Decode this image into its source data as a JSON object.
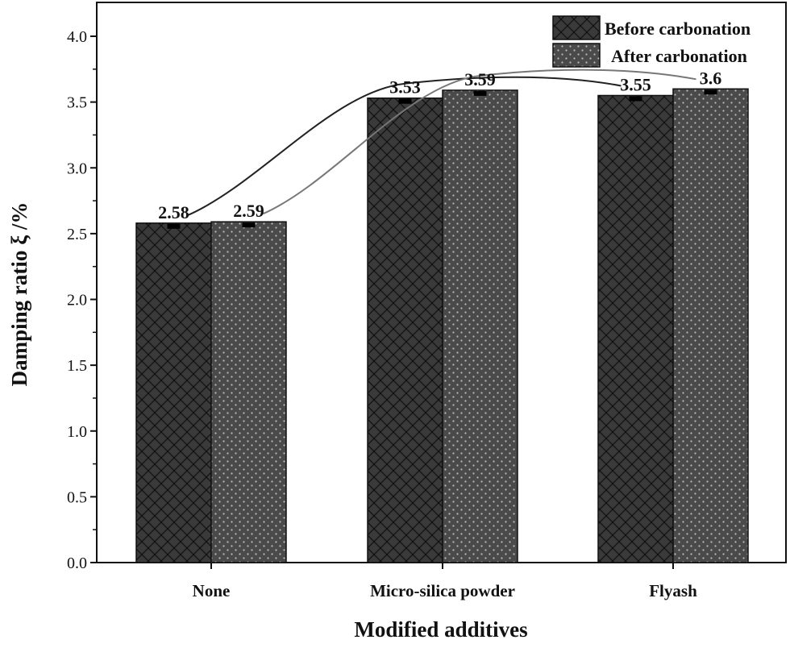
{
  "chart_data": {
    "type": "bar",
    "title": "",
    "xlabel": "Modified additives",
    "ylabel": "Damping ratio ξ /%",
    "ylim": [
      0,
      4.27
    ],
    "yticks": [
      "0.0",
      "0.5",
      "1.0",
      "1.5",
      "2.0",
      "2.5",
      "3.0",
      "3.5",
      "4.0"
    ],
    "categories": [
      "None",
      "Micro-silica powder",
      "Flyash"
    ],
    "series": [
      {
        "name": "Before carbonation",
        "values": [
          2.58,
          3.53,
          3.55
        ],
        "labels": [
          "2.58",
          "3.53",
          "3.55"
        ],
        "color": "#3a3a3a",
        "pattern": "crosshatch"
      },
      {
        "name": "After carbonation",
        "values": [
          2.59,
          3.59,
          3.6
        ],
        "labels": [
          "2.59",
          "3.59",
          "3.6"
        ],
        "color": "#4a4a4a",
        "pattern": "dots"
      }
    ],
    "legend_position": "top-right",
    "grid": false
  }
}
